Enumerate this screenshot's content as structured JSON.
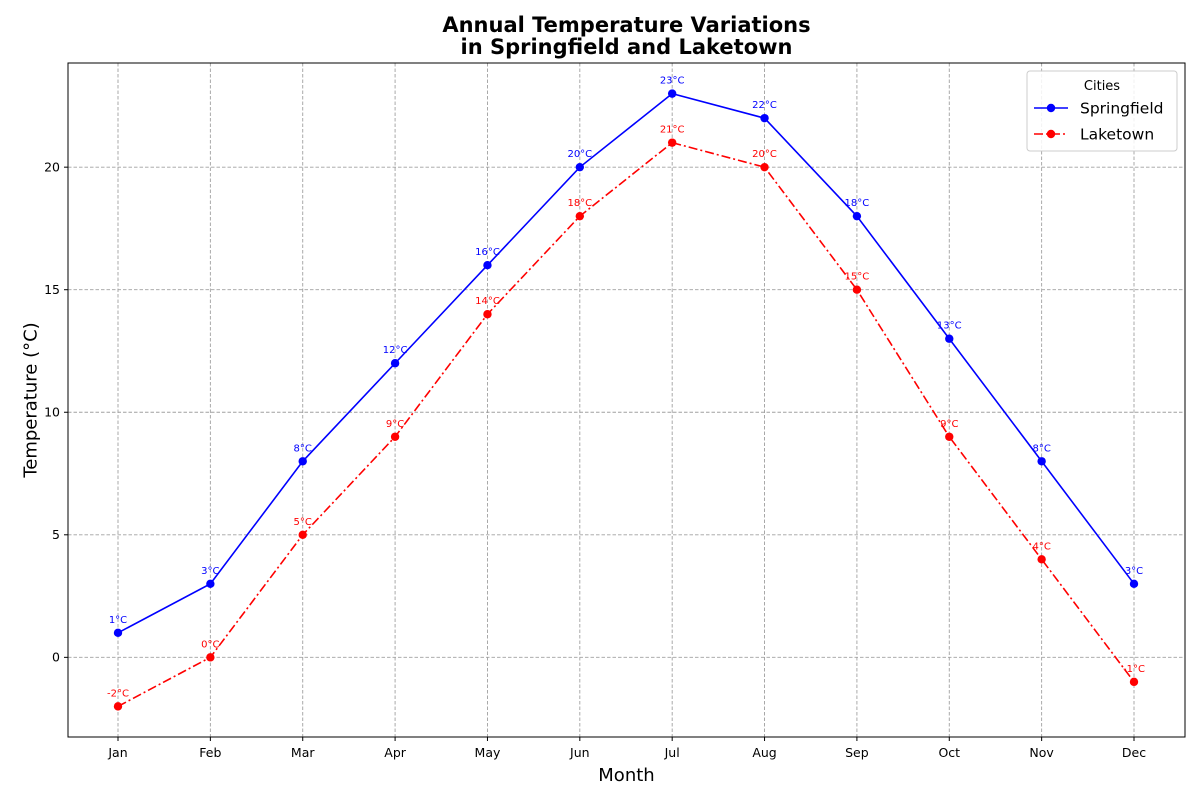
{
  "chart_data": {
    "type": "line",
    "title": [
      "Annual Temperature Variations",
      "in Springfield and Laketown"
    ],
    "xlabel": "Month",
    "ylabel": "Temperature (°C)",
    "categories": [
      "Jan",
      "Feb",
      "Mar",
      "Apr",
      "May",
      "Jun",
      "Jul",
      "Aug",
      "Sep",
      "Oct",
      "Nov",
      "Dec"
    ],
    "ylim": [
      -3.25,
      24.25
    ],
    "yticks": [
      0,
      5,
      10,
      15,
      20
    ],
    "grid": true,
    "legend": {
      "title": "Cities",
      "placement": "top-right"
    },
    "series": [
      {
        "name": "Springfield",
        "color": "#0000ff",
        "line_style": "solid",
        "values": [
          1,
          3,
          8,
          12,
          16,
          20,
          23,
          22,
          18,
          13,
          8,
          3
        ],
        "data_labels": [
          "1°C",
          "3°C",
          "8°C",
          "12°C",
          "16°C",
          "20°C",
          "23°C",
          "22°C",
          "18°C",
          "13°C",
          "8°C",
          "3°C"
        ]
      },
      {
        "name": "Laketown",
        "color": "#ff0000",
        "line_style": "dashdot",
        "values": [
          -2,
          0,
          5,
          9,
          14,
          18,
          21,
          20,
          15,
          9,
          4,
          -1
        ],
        "data_labels": [
          "-2°C",
          "0°C",
          "5°C",
          "9°C",
          "14°C",
          "18°C",
          "21°C",
          "20°C",
          "15°C",
          "9°C",
          "4°C",
          "-1°C"
        ]
      }
    ]
  }
}
